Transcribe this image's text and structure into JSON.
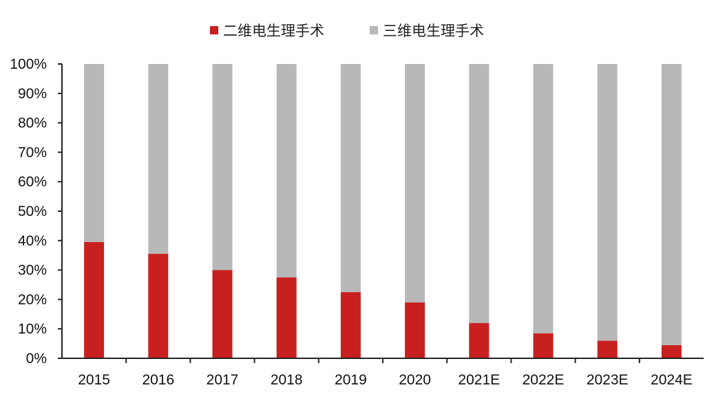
{
  "chart_data": {
    "type": "bar",
    "stacked": true,
    "title": "",
    "xlabel": "",
    "ylabel": "",
    "ylim": [
      0,
      100
    ],
    "y_ticks": [
      "0%",
      "10%",
      "20%",
      "30%",
      "40%",
      "50%",
      "60%",
      "70%",
      "80%",
      "90%",
      "100%"
    ],
    "categories": [
      "2015",
      "2016",
      "2017",
      "2018",
      "2019",
      "2020",
      "2021E",
      "2022E",
      "2023E",
      "2024E"
    ],
    "series": [
      {
        "name": "二维电生理手术",
        "color": "#C8201E",
        "values": [
          39.5,
          35.5,
          30,
          27.5,
          22.5,
          19,
          12,
          8.5,
          6,
          4.5
        ]
      },
      {
        "name": "三维电生理手术",
        "color": "#B8B8B8",
        "values": [
          60.5,
          64.5,
          70,
          72.5,
          77.5,
          81,
          88,
          91.5,
          94,
          95.5
        ]
      }
    ],
    "legend_position": "top-center",
    "grid": false
  }
}
